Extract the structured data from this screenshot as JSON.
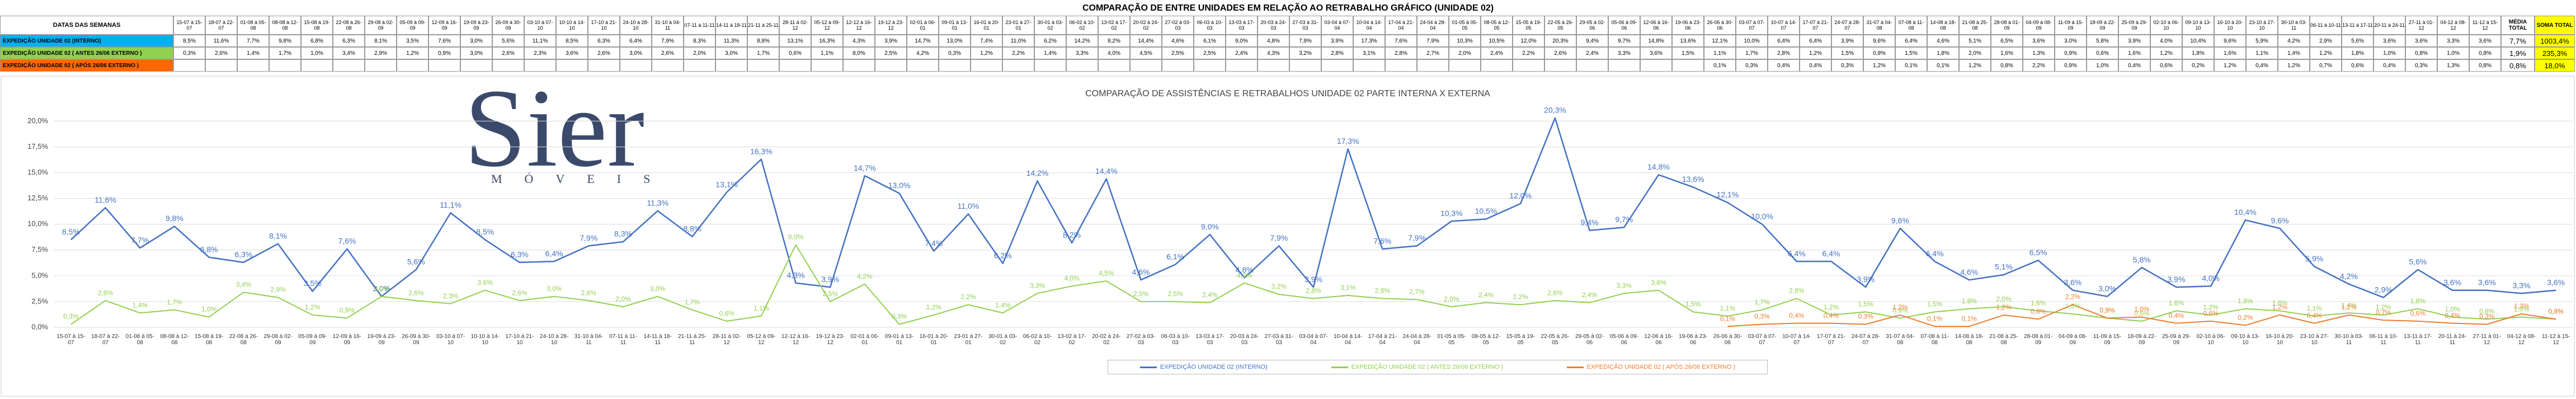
{
  "title": "COMPARAÇÃO DE ENTRE UNIDADES EM RELAÇÃO AO RETRABALHO GRÁFICO (UNIDADE 02)",
  "table": {
    "header": "DATAS DAS SEMANAS",
    "avg_header": "MÉDIA TOTAL",
    "sum_header": "SOMA TOTAL",
    "avg": [
      "7,7%",
      "1,9%",
      "0,8%"
    ],
    "sum": [
      "1003,4%",
      "235,3%",
      "18,0%"
    ]
  },
  "logo": {
    "name": "Sier",
    "tagline": "MÓVEIS"
  },
  "chart_data": {
    "type": "line",
    "title": "COMPARAÇÃO DE ASSISTÊNCIAS E RETRABALHOS UNIDADE 02 PARTE INTERNA X EXTERNA",
    "categories": [
      "15-07 à 15-07",
      "18-07 à 22-07",
      "01-08 à 05-08",
      "08-08 à 12-08",
      "15-08 à 19-08",
      "22-08 à 26-08",
      "29-08 à 02-09",
      "05-09 à 09-09",
      "12-09 à 16-09",
      "19-09 à 23-09",
      "26-09 à 30-09",
      "03-10 à 07-10",
      "10-10 à 14-10",
      "17-10 à 21-10",
      "24-10 à 28-10",
      "31-10 à 04-11",
      "07-11 à 11-11",
      "14-11 à 18-11",
      "21-11 à 25-11",
      "28-11 à 02-12",
      "05-12 à 09-12",
      "12-12 à 16-12",
      "19-12 à 23-12",
      "02-01 à 06-01",
      "09-01 à 13-01",
      "16-01 à 20-01",
      "23-01 à 27-01",
      "30-01 à 03-02",
      "06-02 à 10-02",
      "13-02 à 17-02",
      "20-02 à 24-02",
      "27-02 à 03-03",
      "06-03 à 10-03",
      "13-03 à 17-03",
      "20-03 à 24-03",
      "27-03 à 31-03",
      "03-04 à 07-04",
      "10-04 à 14-04",
      "17-04 à 21-04",
      "24-04 à 28-04",
      "01-05 à 05-05",
      "08-05 à 12-05",
      "15-05 à 19-05",
      "22-05 à 26-05",
      "29-05 à 02-06",
      "05-06 à 09-06",
      "12-06 à 16-06",
      "19-06 à 23-06",
      "26-06 à 30-06",
      "03-07 à 07-07",
      "10-07 à 14-07",
      "17-07 à 21-07",
      "24-07 à 28-07",
      "31-07 à 04-08",
      "07-08 à 11-08",
      "14-08 à 18-08",
      "21-08 à 25-08",
      "28-08 à 01-09",
      "04-09 à 08-09",
      "11-09 à 15-09",
      "18-09 à 22-09",
      "25-09 à 29-09",
      "02-10 à 06-10",
      "09-10 à 13-10",
      "16-10 à 20-10",
      "23-10 à 27-10",
      "30-10 à 03-11",
      "06-11 à 10-11",
      "13-11 à 17-11",
      "20-11 à 24-11",
      "27-11 à 01-12",
      "04-12 à 08-12",
      "11-12 à 15-12"
    ],
    "series": [
      {
        "name": "EXPEDIÇÃO UNIDADE 02 (INTERNO)",
        "color": "#4472c4",
        "row_color": "#00b0f0",
        "values": [
          8.5,
          11.6,
          7.7,
          9.8,
          6.8,
          6.3,
          8.1,
          3.5,
          7.6,
          3.0,
          5.6,
          11.1,
          8.5,
          6.3,
          6.4,
          7.9,
          8.3,
          11.3,
          8.8,
          13.1,
          16.3,
          4.3,
          3.9,
          14.7,
          13.0,
          7.4,
          11.0,
          6.2,
          14.2,
          8.2,
          14.4,
          4.6,
          6.1,
          9.0,
          4.8,
          7.9,
          3.9,
          17.3,
          7.6,
          7.9,
          10.3,
          10.5,
          12.0,
          20.3,
          9.4,
          9.7,
          14.8,
          13.6,
          12.1,
          10.0,
          6.4,
          6.4,
          3.9,
          9.6,
          6.4,
          4.6,
          5.1,
          6.5,
          3.6,
          3.0,
          5.8,
          3.9,
          4.0,
          10.4,
          9.6,
          5.9,
          4.2,
          2.9,
          5.6,
          3.6,
          3.6,
          3.3,
          3.6
        ],
        "value_labels": [
          "8,5%",
          "11,6%",
          "7,7%",
          "9,8%",
          "6,8%",
          "6,3%",
          "8,1%",
          "3,5%",
          "7,6%",
          "3,0%",
          "5,6%",
          "11,1%",
          "8,5%",
          "6,3%",
          "6,4%",
          "7,9%",
          "8,3%",
          "11,3%",
          "8,8%",
          "13,1%",
          "16,3%",
          "4,3%",
          "3,9%",
          "14,7%",
          "13,0%",
          "7,4%",
          "11,0%",
          "6,2%",
          "14,2%",
          "8,2%",
          "14,4%",
          "4,6%",
          "6,1%",
          "9,0%",
          "4,8%",
          "7,9%",
          "3,9%",
          "17,3%",
          "7,6%",
          "7,9%",
          "10,3%",
          "10,5%",
          "12,0%",
          "20,3%",
          "9,4%",
          "9,7%",
          "14,8%",
          "13,6%",
          "12,1%",
          "10,0%",
          "6,4%",
          "6,4%",
          "3,9%",
          "9,6%",
          "6,4%",
          "4,6%",
          "5,1%",
          "6,5%",
          "3,6%",
          "3,0%",
          "5,8%",
          "3,9%",
          "4,0%",
          "10,4%",
          "9,6%",
          "5,9%",
          "4,2%",
          "2,9%",
          "5,6%",
          "3,6%",
          "3,6%",
          "3,3%",
          "3,6%"
        ]
      },
      {
        "name": "EXPEDIÇÃO UNIDADE 02 ( ANTES 26/06 EXTERNO )",
        "color": "#92d050",
        "row_color": "#92d050",
        "values": [
          0.3,
          2.6,
          1.4,
          1.7,
          1.0,
          3.4,
          2.9,
          1.2,
          0.9,
          3.0,
          2.6,
          2.3,
          3.6,
          2.6,
          3.0,
          2.6,
          2.0,
          3.0,
          1.7,
          0.6,
          1.1,
          8.0,
          2.5,
          4.2,
          0.3,
          1.2,
          2.2,
          1.4,
          3.3,
          4.0,
          4.5,
          2.5,
          2.5,
          2.4,
          4.3,
          3.2,
          2.8,
          3.1,
          2.8,
          2.7,
          2.0,
          2.4,
          2.2,
          2.6,
          2.4,
          3.3,
          3.6,
          1.5,
          1.1,
          1.7,
          2.8,
          1.2,
          1.5,
          0.9,
          1.5,
          1.8,
          2.0,
          1.6,
          1.3,
          0.9,
          0.6,
          1.6,
          1.2,
          1.8,
          1.6,
          1.1,
          1.4,
          1.2,
          1.8,
          1.0,
          0.8,
          1.0,
          0.8
        ],
        "value_labels": [
          "0,3%",
          "2,6%",
          "1,4%",
          "1,7%",
          "1,0%",
          "3,4%",
          "2,9%",
          "1,2%",
          "0,9%",
          "3,0%",
          "2,6%",
          "2,3%",
          "3,6%",
          "2,6%",
          "3,0%",
          "2,6%",
          "2,0%",
          "3,0%",
          "1,7%",
          "0,6%",
          "1,1%",
          "8,0%",
          "2,5%",
          "4,2%",
          "0,3%",
          "1,2%",
          "2,2%",
          "1,4%",
          "3,3%",
          "4,0%",
          "4,5%",
          "2,5%",
          "2,5%",
          "2,4%",
          "4,3%",
          "3,2%",
          "2,8%",
          "3,1%",
          "2,8%",
          "2,7%",
          "2,0%",
          "2,4%",
          "2,2%",
          "2,6%",
          "2,4%",
          "3,3%",
          "3,6%",
          "1,5%",
          "1,1%",
          "1,7%",
          "2,8%",
          "1,2%",
          "1,5%",
          "0,9%",
          "1,5%",
          "1,8%",
          "2,0%",
          "1,6%",
          "1,3%",
          "0,9%",
          "0,6%",
          "1,6%",
          "1,2%",
          "1,8%",
          "1,6%",
          "1,1%",
          "1,4%",
          "1,2%",
          "1,8%",
          "1,0%",
          "0,8%",
          "1,0%",
          "0,8%"
        ]
      },
      {
        "name": "EXPEDIÇÃO UNIDADE 02 ( APÓS 26/06 EXTERNO )",
        "color": "#ed7d31",
        "row_color": "#ff6600",
        "values": [
          null,
          null,
          null,
          null,
          null,
          null,
          null,
          null,
          null,
          null,
          null,
          null,
          null,
          null,
          null,
          null,
          null,
          null,
          null,
          null,
          null,
          null,
          null,
          null,
          null,
          null,
          null,
          null,
          null,
          null,
          null,
          null,
          null,
          null,
          null,
          null,
          null,
          null,
          null,
          null,
          null,
          null,
          null,
          null,
          null,
          null,
          null,
          null,
          0.1,
          0.3,
          0.4,
          0.4,
          0.3,
          1.2,
          0.1,
          0.1,
          1.2,
          0.8,
          2.2,
          0.9,
          1.0,
          0.4,
          0.6,
          0.2,
          1.2,
          0.4,
          1.2,
          0.7,
          0.6,
          0.4,
          0.3,
          1.3,
          0.8
        ],
        "value_labels": [
          null,
          null,
          null,
          null,
          null,
          null,
          null,
          null,
          null,
          null,
          null,
          null,
          null,
          null,
          null,
          null,
          null,
          null,
          null,
          null,
          null,
          null,
          null,
          null,
          null,
          null,
          null,
          null,
          null,
          null,
          null,
          null,
          null,
          null,
          null,
          null,
          null,
          null,
          null,
          null,
          null,
          null,
          null,
          null,
          null,
          null,
          null,
          null,
          "0,1%",
          "0,3%",
          "0,4%",
          "0,4%",
          "0,3%",
          "1,2%",
          "0,1%",
          "0,1%",
          "1,2%",
          "0,8%",
          "2,2%",
          "0,9%",
          "1,0%",
          "0,4%",
          "0,6%",
          "0,2%",
          "1,2%",
          "0,4%",
          "1,2%",
          "0,7%",
          "0,6%",
          "0,4%",
          "0,3%",
          "1,3%",
          "0,8%"
        ]
      }
    ],
    "ylim": [
      0,
      21
    ],
    "yticks": [
      {
        "value": 0,
        "label": "0,0%"
      },
      {
        "value": 2.5,
        "label": "2,5%"
      },
      {
        "value": 5,
        "label": "5,0%"
      },
      {
        "value": 7.5,
        "label": "7,5%"
      },
      {
        "value": 10,
        "label": "10,0%"
      },
      {
        "value": 12.5,
        "label": "12,5%"
      },
      {
        "value": 15,
        "label": "15,0%"
      },
      {
        "value": 17.5,
        "label": "17,5%"
      },
      {
        "value": 20,
        "label": "20,0%"
      }
    ],
    "grid": true,
    "legend": "bottom"
  }
}
